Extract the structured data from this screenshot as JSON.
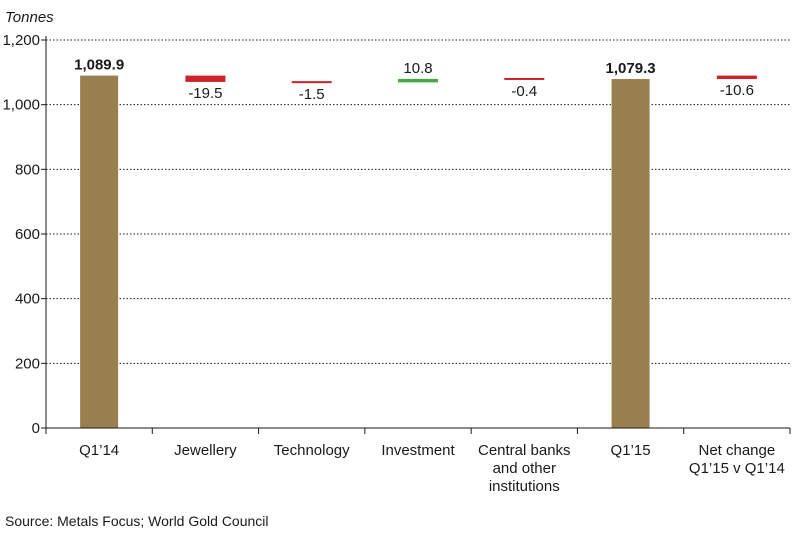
{
  "chart_data": {
    "type": "bar",
    "subtype": "waterfall",
    "ylabel": "Tonnes",
    "ylim": [
      0,
      1200
    ],
    "yticks": [
      "0",
      "200",
      "400",
      "600",
      "800",
      "1,000",
      "1,200"
    ],
    "ytick_values": [
      0,
      200,
      400,
      600,
      800,
      1000,
      1200
    ],
    "grid": "horizontal-dotted",
    "categories": [
      {
        "label": [
          "Q1’14"
        ],
        "kind": "total",
        "value": 1089.9,
        "display": "1,089.9"
      },
      {
        "label": [
          "Jewellery"
        ],
        "kind": "delta",
        "value": -19.5,
        "display": "-19.5"
      },
      {
        "label": [
          "Technology"
        ],
        "kind": "delta",
        "value": -1.5,
        "display": "-1.5"
      },
      {
        "label": [
          "Investment"
        ],
        "kind": "delta",
        "value": 10.8,
        "display": "10.8"
      },
      {
        "label": [
          "Central banks",
          "and other",
          "institutions"
        ],
        "kind": "delta",
        "value": -0.4,
        "display": "-0.4"
      },
      {
        "label": [
          "Q1’15"
        ],
        "kind": "total",
        "value": 1079.3,
        "display": "1,079.3"
      },
      {
        "label": [
          "Net change",
          "Q1’15 v Q1’14"
        ],
        "kind": "net",
        "value": -10.6,
        "display": "-10.6"
      }
    ],
    "colors": {
      "total": "#9a7f4f",
      "increase": "#4aa64a",
      "decrease": "#cc2229",
      "axis": "#1a1a1a",
      "grid": "#1a1a1a"
    }
  },
  "source": "Source: Metals Focus; World Gold Council"
}
